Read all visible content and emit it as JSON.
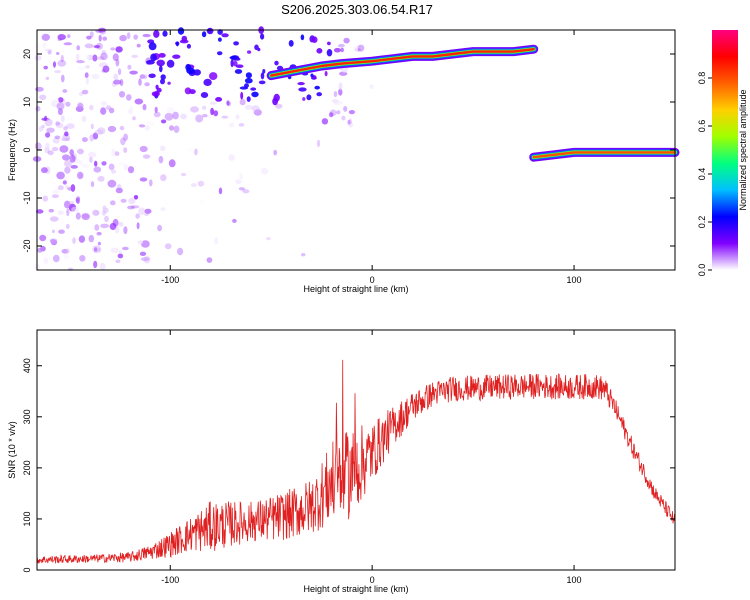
{
  "page_title": "S206.2025.303.06.54.R17",
  "chart_data": [
    {
      "type": "heatmap",
      "xlabel": "Height of straight line (km)",
      "ylabel": "Frequency (Hz)",
      "xlim": [
        -166,
        150
      ],
      "ylim": [
        -25,
        25
      ],
      "x_ticks": [
        -100,
        0,
        100
      ],
      "x_tick_labels": [
        "-100",
        "0",
        "100"
      ],
      "y_ticks": [
        20,
        10,
        0,
        -10,
        -20
      ],
      "y_tick_labels": [
        "20",
        "10",
        "0",
        "-10",
        "-20"
      ],
      "colorbar": {
        "label": "Normalized spectral amplitude",
        "range": [
          0,
          1
        ],
        "ticks": [
          0.0,
          0.2,
          0.4,
          0.6,
          0.8
        ],
        "tick_labels": [
          "0.0",
          "0.2",
          "0.4",
          "0.6",
          "0.8"
        ],
        "stops": [
          "#ffffff",
          "#8000ff",
          "#0000ff",
          "#00c0ff",
          "#00ff80",
          "#a0ff00",
          "#ffd000",
          "#ff6000",
          "#ff0000",
          "#ff0080"
        ]
      },
      "traces": [
        {
          "x": [
            -50,
            -25,
            -15,
            0,
            10,
            20,
            30,
            40,
            50,
            60,
            70,
            80
          ],
          "y": [
            15.5,
            17.5,
            18,
            18.5,
            19,
            19.5,
            19.5,
            20,
            20.5,
            20.5,
            20.5,
            21
          ],
          "level": 0.85
        },
        {
          "x": [
            80,
            90,
            100,
            110,
            120,
            130,
            140,
            150
          ],
          "y": [
            -1.5,
            -1,
            -0.5,
            -0.5,
            -0.5,
            -0.5,
            -0.5,
            -0.5
          ],
          "level": 0.8
        }
      ],
      "noise_region": {
        "x": [
          -166,
          -30
        ],
        "y": [
          -25,
          25
        ]
      }
    },
    {
      "type": "line",
      "xlabel": "Height of straight line (km)",
      "ylabel": "SNR (10 * v/v)",
      "xlim": [
        -166,
        150
      ],
      "ylim": [
        0,
        470
      ],
      "x_ticks": [
        -100,
        0,
        100
      ],
      "x_tick_labels": [
        "-100",
        "0",
        "100"
      ],
      "y_ticks": [
        0,
        100,
        200,
        300,
        400
      ],
      "y_tick_labels": [
        "0",
        "100",
        "200",
        "300",
        "400"
      ],
      "color": "#e02020",
      "x": [
        -166,
        -140,
        -120,
        -110,
        -100,
        -90,
        -80,
        -70,
        -60,
        -50,
        -40,
        -30,
        -20,
        -10,
        0,
        10,
        20,
        30,
        40,
        60,
        80,
        100,
        110,
        115,
        120,
        130,
        140,
        150
      ],
      "y": [
        20,
        22,
        25,
        35,
        50,
        70,
        85,
        90,
        95,
        100,
        110,
        125,
        170,
        190,
        230,
        280,
        320,
        345,
        355,
        358,
        360,
        358,
        360,
        355,
        320,
        230,
        150,
        95
      ],
      "spread": [
        8,
        8,
        10,
        15,
        25,
        35,
        50,
        45,
        40,
        45,
        50,
        55,
        80,
        90,
        60,
        40,
        30,
        25,
        25,
        25,
        25,
        25,
        25,
        25,
        20,
        18,
        15,
        15
      ]
    }
  ]
}
